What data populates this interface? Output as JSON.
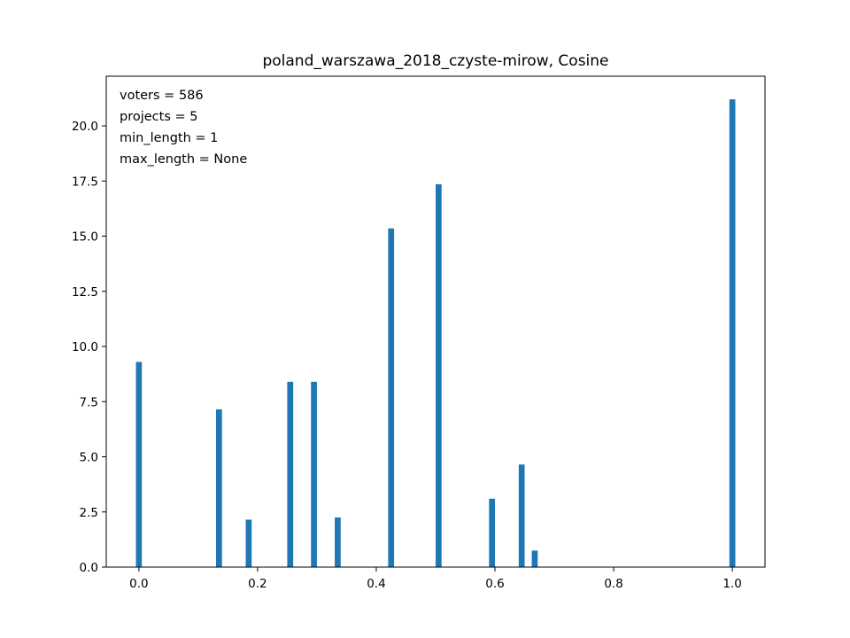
{
  "chart_data": {
    "type": "bar",
    "title": "poland_warszawa_2018_czyste-mirow, Cosine",
    "xlabel": "",
    "ylabel": "",
    "xlim": [
      -0.055,
      1.055
    ],
    "ylim": [
      0,
      22.25
    ],
    "xticks": [
      "0.0",
      "0.2",
      "0.4",
      "0.6",
      "0.8",
      "1.0"
    ],
    "yticks": [
      "0.0",
      "2.5",
      "5.0",
      "7.5",
      "10.0",
      "12.5",
      "15.0",
      "17.5",
      "20.0"
    ],
    "bar_width": 0.01,
    "bar_color": "#1f77b4",
    "grid": false,
    "legend": false,
    "annotation_lines": [
      "voters = 586",
      "projects = 5",
      "min_length = 1",
      "max_length = None"
    ],
    "bars": [
      {
        "x": 0.0,
        "value": 9.3
      },
      {
        "x": 0.135,
        "value": 7.15
      },
      {
        "x": 0.185,
        "value": 2.15
      },
      {
        "x": 0.255,
        "value": 8.4
      },
      {
        "x": 0.295,
        "value": 8.4
      },
      {
        "x": 0.335,
        "value": 2.25
      },
      {
        "x": 0.425,
        "value": 15.35
      },
      {
        "x": 0.505,
        "value": 17.35
      },
      {
        "x": 0.595,
        "value": 3.1
      },
      {
        "x": 0.645,
        "value": 4.65
      },
      {
        "x": 0.667,
        "value": 0.75
      },
      {
        "x": 1.0,
        "value": 21.2
      }
    ]
  }
}
